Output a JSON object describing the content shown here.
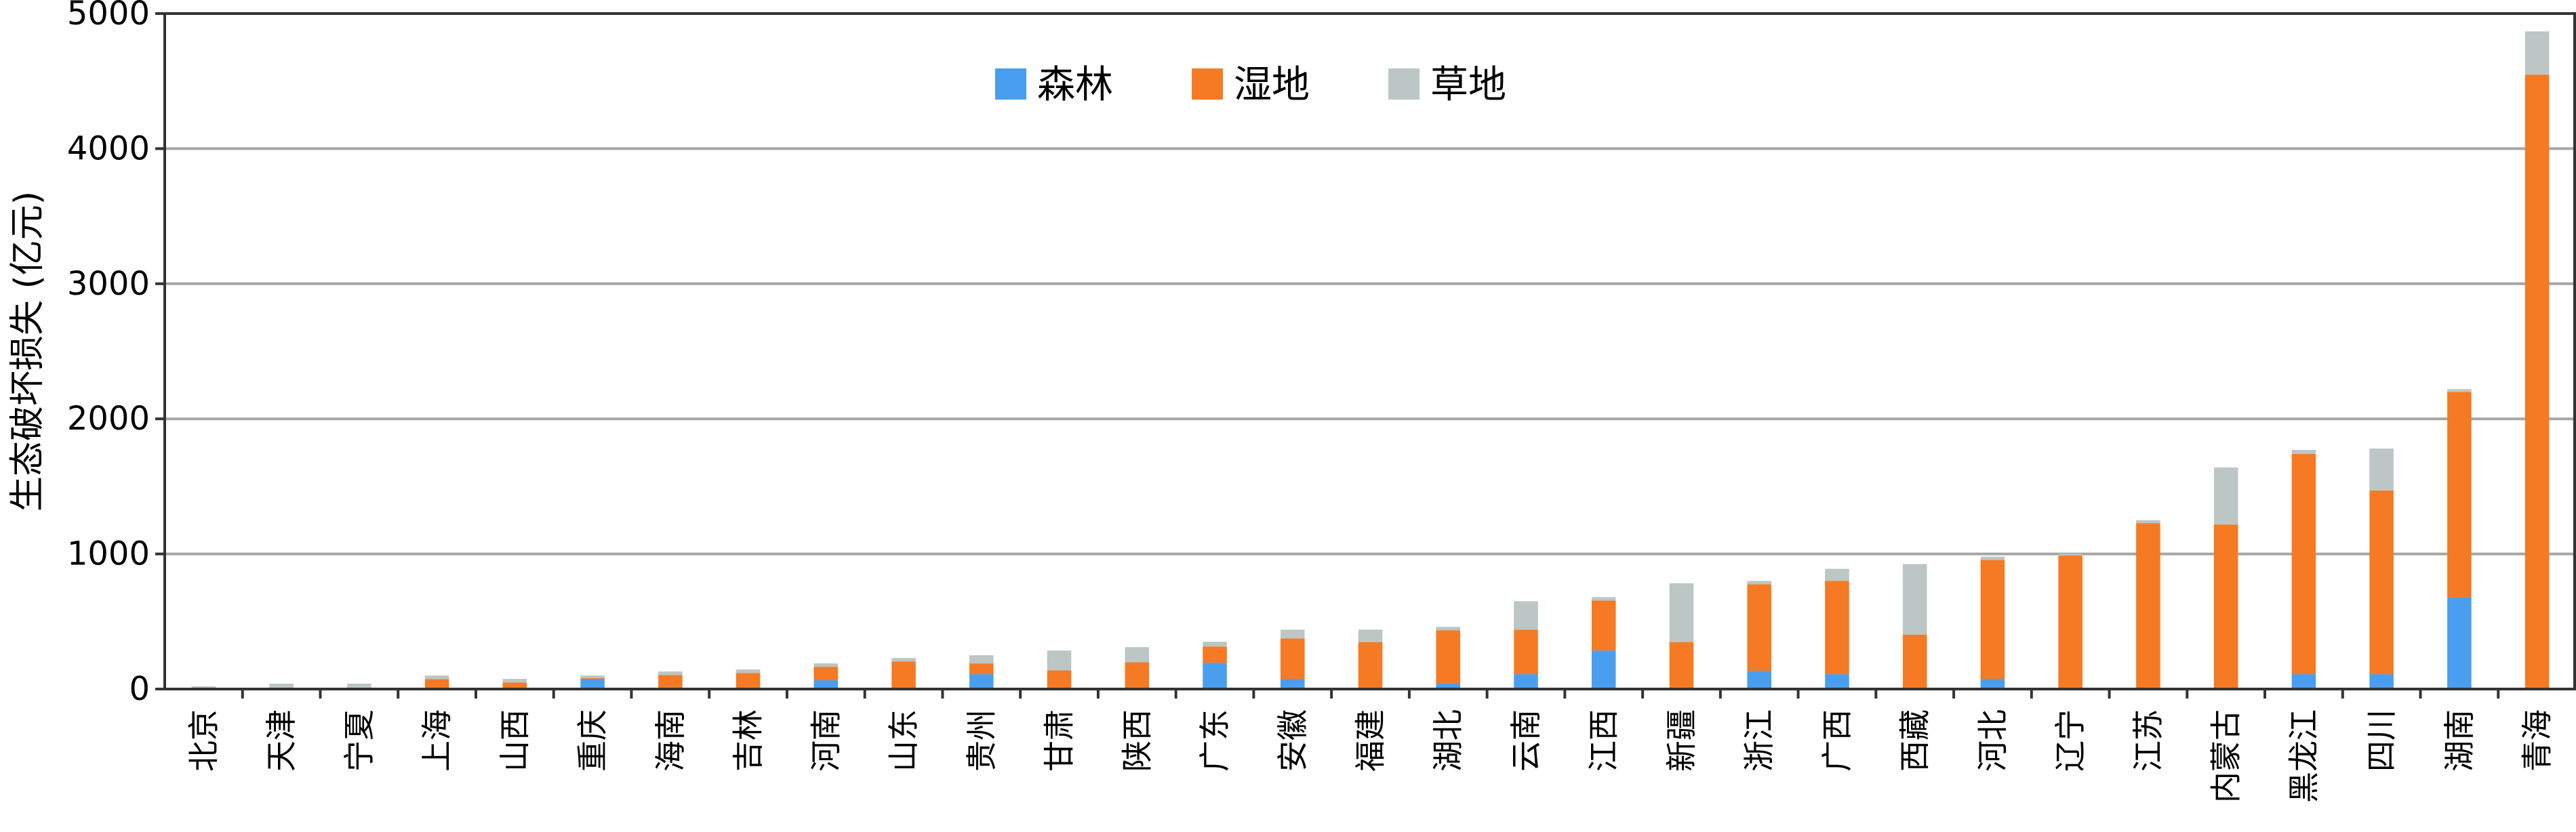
{
  "chart_data": {
    "type": "bar",
    "stacked": true,
    "ylabel": "生态破坏损失 (亿元)",
    "xlabel": "",
    "ylim": [
      0,
      5000
    ],
    "yticks": [
      0,
      1000,
      2000,
      3000,
      4000,
      5000
    ],
    "grid": true,
    "legend_position": "top-center",
    "categories": [
      "北京",
      "天津",
      "宁夏",
      "上海",
      "山西",
      "重庆",
      "海南",
      "吉林",
      "河南",
      "山东",
      "贵州",
      "甘肃",
      "陕西",
      "广东",
      "安徽",
      "福建",
      "湖北",
      "云南",
      "江西",
      "新疆",
      "浙江",
      "广西",
      "西藏",
      "河北",
      "辽宁",
      "江苏",
      "内蒙古",
      "黑龙江",
      "四川",
      "湖南",
      "青海"
    ],
    "series": [
      {
        "name": "森林",
        "color": "#4a9ef0",
        "values": [
          2,
          3,
          3,
          8,
          8,
          75,
          8,
          8,
          65,
          8,
          110,
          8,
          8,
          195,
          75,
          8,
          40,
          110,
          285,
          8,
          135,
          110,
          8,
          75,
          8,
          8,
          8,
          110,
          110,
          680,
          8
        ]
      },
      {
        "name": "湿地",
        "color": "#f57a23",
        "values": [
          3,
          5,
          5,
          65,
          40,
          5,
          95,
          110,
          100,
          195,
          80,
          130,
          190,
          120,
          300,
          340,
          395,
          330,
          370,
          340,
          640,
          690,
          395,
          880,
          980,
          1220,
          1210,
          1630,
          1360,
          1520,
          4540
        ]
      },
      {
        "name": "草地",
        "color": "#bcc6c4",
        "values": [
          15,
          32,
          32,
          27,
          27,
          20,
          27,
          27,
          25,
          27,
          60,
          147,
          112,
          35,
          65,
          92,
          25,
          210,
          25,
          435,
          25,
          90,
          522,
          25,
          12,
          22,
          422,
          30,
          310,
          20,
          320
        ]
      }
    ]
  }
}
